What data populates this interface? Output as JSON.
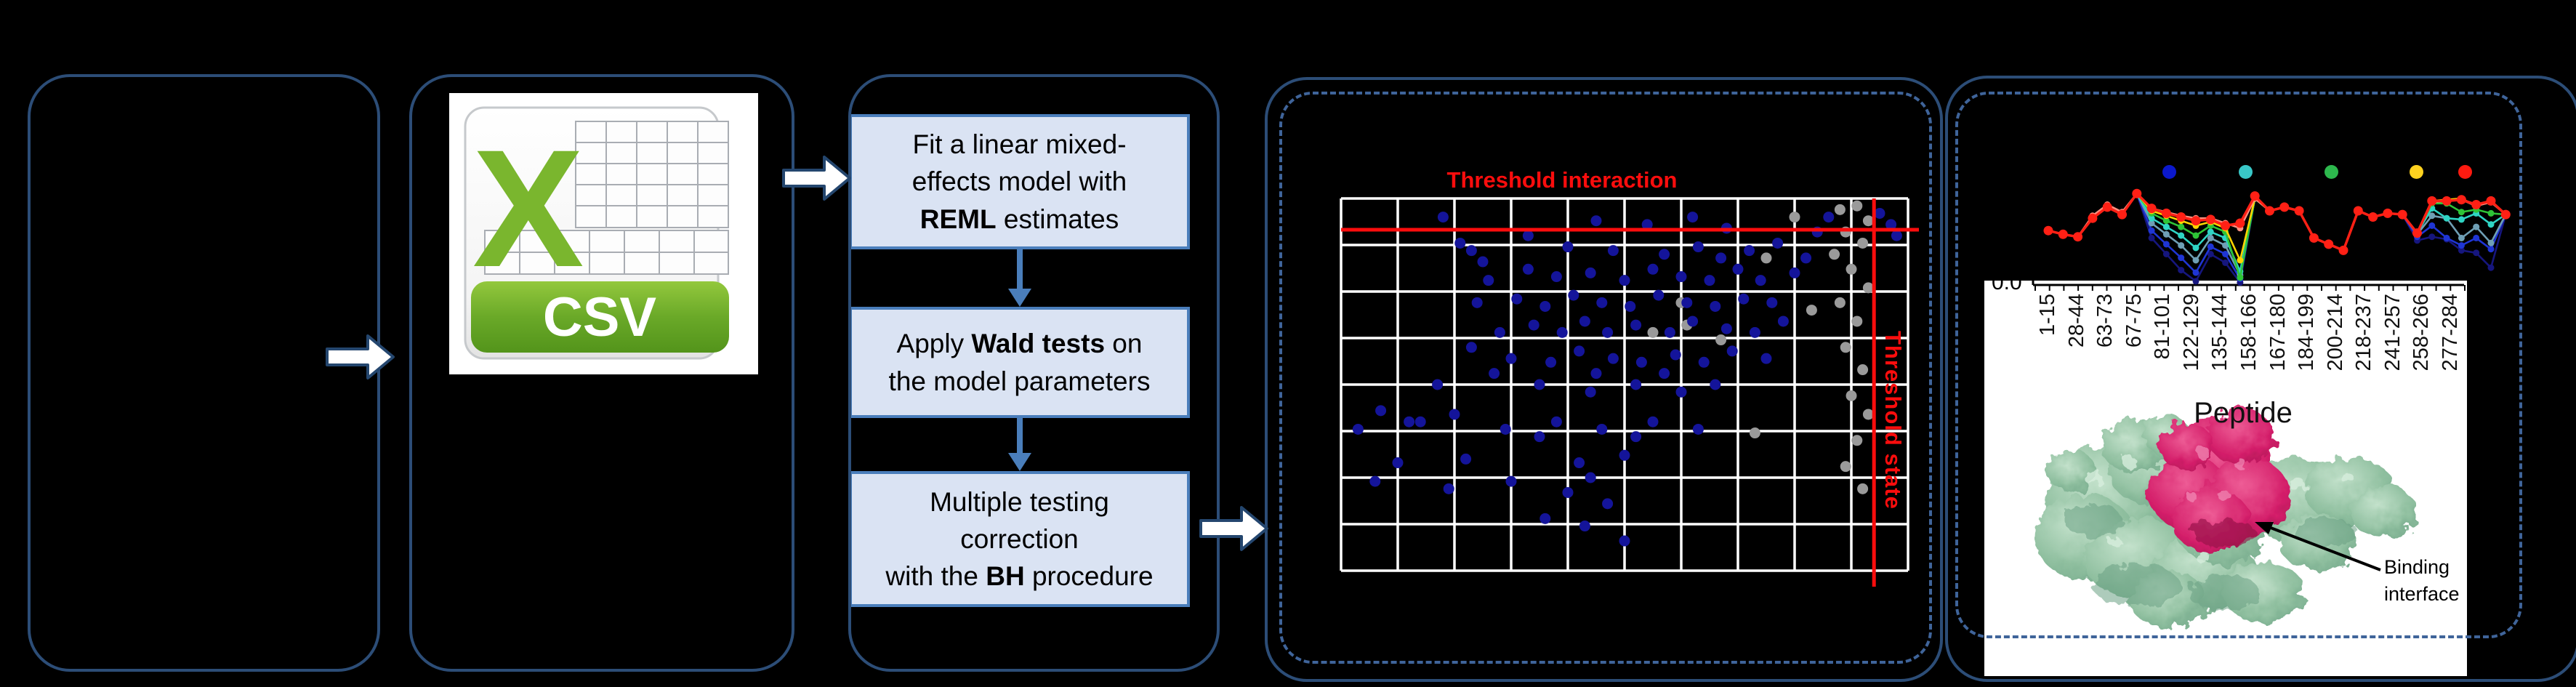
{
  "accent": {
    "panel_border": "#2c4d77",
    "panel_dashed": "#3f649a",
    "box_fill": "#dae3f3",
    "box_border": "#4a7ebb",
    "threshold_red": "#fb0d0d",
    "csv_green": "#7ab62e",
    "protein_green": "#8fbf9f",
    "protein_magenta": "#d41f6a"
  },
  "csv": {
    "letter": "X",
    "label": "CSV"
  },
  "workflow": {
    "steps": [
      {
        "lines": [
          [
            [
              "Fit a linear mixed-",
              false
            ]
          ],
          [
            [
              "effects model with",
              false
            ]
          ],
          [
            [
              "REML",
              true
            ],
            [
              " estimates",
              false
            ]
          ]
        ]
      },
      {
        "lines": [
          [
            [
              "Apply ",
              false
            ],
            [
              "Wald tests",
              true
            ],
            [
              " on",
              false
            ]
          ],
          [
            [
              "the model parameters",
              false
            ]
          ]
        ]
      },
      {
        "lines": [
          [
            [
              "Multiple testing",
              false
            ]
          ],
          [
            [
              "correction",
              false
            ]
          ],
          [
            [
              "with the ",
              false
            ],
            [
              "BH",
              true
            ],
            [
              " procedure",
              false
            ]
          ]
        ]
      }
    ]
  },
  "interaction_map": {
    "title": "Threshold interaction",
    "state_label": "Threshold state"
  },
  "uptake": {
    "y_tick": "0.0",
    "x_title": "Peptide",
    "annotation_lines": [
      "Binding",
      "interface"
    ]
  },
  "chart_data": [
    {
      "type": "scatter",
      "title": "Threshold interaction",
      "xlabel": "",
      "ylabel": "",
      "grid": {
        "cols": 10,
        "rows": 8,
        "line_color": "#ffffff",
        "bg": "#000000"
      },
      "threshold_interaction_y_frac": 0.084,
      "threshold_state_x_frac": 0.94,
      "point_colors": {
        "significant": "#14149a",
        "nonsignificant": "#9a9a9a"
      },
      "blue_points": [
        [
          0.03,
          0.62
        ],
        [
          0.07,
          0.57
        ],
        [
          0.12,
          0.6
        ],
        [
          0.1,
          0.71
        ],
        [
          0.06,
          0.76
        ],
        [
          0.17,
          0.5
        ],
        [
          0.14,
          0.6
        ],
        [
          0.19,
          0.78
        ],
        [
          0.2,
          0.58
        ],
        [
          0.22,
          0.7
        ],
        [
          0.18,
          0.05
        ],
        [
          0.21,
          0.12
        ],
        [
          0.23,
          0.14
        ],
        [
          0.25,
          0.17
        ],
        [
          0.24,
          0.28
        ],
        [
          0.26,
          0.22
        ],
        [
          0.28,
          0.36
        ],
        [
          0.29,
          0.62
        ],
        [
          0.3,
          0.76
        ],
        [
          0.3,
          0.43
        ],
        [
          0.31,
          0.27
        ],
        [
          0.33,
          0.1
        ],
        [
          0.33,
          0.19
        ],
        [
          0.34,
          0.34
        ],
        [
          0.35,
          0.5
        ],
        [
          0.36,
          0.29
        ],
        [
          0.36,
          0.86
        ],
        [
          0.37,
          0.44
        ],
        [
          0.38,
          0.21
        ],
        [
          0.38,
          0.6
        ],
        [
          0.39,
          0.36
        ],
        [
          0.4,
          0.79
        ],
        [
          0.41,
          0.26
        ],
        [
          0.42,
          0.41
        ],
        [
          0.42,
          0.71
        ],
        [
          0.43,
          0.33
        ],
        [
          0.43,
          0.88
        ],
        [
          0.44,
          0.2
        ],
        [
          0.44,
          0.52
        ],
        [
          0.45,
          0.06
        ],
        [
          0.46,
          0.28
        ],
        [
          0.46,
          0.62
        ],
        [
          0.47,
          0.36
        ],
        [
          0.47,
          0.82
        ],
        [
          0.48,
          0.14
        ],
        [
          0.48,
          0.43
        ],
        [
          0.5,
          0.22
        ],
        [
          0.5,
          0.69
        ],
        [
          0.5,
          0.92
        ],
        [
          0.51,
          0.29
        ],
        [
          0.52,
          0.34
        ],
        [
          0.52,
          0.5
        ],
        [
          0.53,
          0.44
        ],
        [
          0.54,
          0.07
        ],
        [
          0.55,
          0.19
        ],
        [
          0.55,
          0.6
        ],
        [
          0.56,
          0.26
        ],
        [
          0.57,
          0.15
        ],
        [
          0.58,
          0.36
        ],
        [
          0.59,
          0.42
        ],
        [
          0.6,
          0.21
        ],
        [
          0.6,
          0.52
        ],
        [
          0.61,
          0.28
        ],
        [
          0.62,
          0.05
        ],
        [
          0.62,
          0.33
        ],
        [
          0.63,
          0.13
        ],
        [
          0.63,
          0.62
        ],
        [
          0.64,
          0.44
        ],
        [
          0.65,
          0.22
        ],
        [
          0.66,
          0.29
        ],
        [
          0.66,
          0.5
        ],
        [
          0.67,
          0.16
        ],
        [
          0.68,
          0.08
        ],
        [
          0.68,
          0.35
        ],
        [
          0.69,
          0.41
        ],
        [
          0.7,
          0.19
        ],
        [
          0.71,
          0.27
        ],
        [
          0.72,
          0.14
        ],
        [
          0.73,
          0.36
        ],
        [
          0.74,
          0.22
        ],
        [
          0.75,
          0.43
        ],
        [
          0.76,
          0.28
        ],
        [
          0.77,
          0.12
        ],
        [
          0.78,
          0.33
        ],
        [
          0.8,
          0.2
        ],
        [
          0.82,
          0.16
        ],
        [
          0.84,
          0.09
        ],
        [
          0.86,
          0.05
        ],
        [
          0.95,
          0.04
        ],
        [
          0.97,
          0.07
        ],
        [
          0.98,
          0.1
        ],
        [
          0.27,
          0.47
        ],
        [
          0.4,
          0.13
        ],
        [
          0.57,
          0.47
        ],
        [
          0.45,
          0.47
        ],
        [
          0.23,
          0.4
        ],
        [
          0.35,
          0.64
        ],
        [
          0.52,
          0.64
        ],
        [
          0.44,
          0.75
        ]
      ],
      "gray_points": [
        [
          0.88,
          0.03
        ],
        [
          0.91,
          0.02
        ],
        [
          0.93,
          0.06
        ],
        [
          0.89,
          0.09
        ],
        [
          0.92,
          0.12
        ],
        [
          0.87,
          0.15
        ],
        [
          0.9,
          0.19
        ],
        [
          0.93,
          0.24
        ],
        [
          0.88,
          0.28
        ],
        [
          0.91,
          0.33
        ],
        [
          0.89,
          0.4
        ],
        [
          0.92,
          0.46
        ],
        [
          0.9,
          0.53
        ],
        [
          0.93,
          0.58
        ],
        [
          0.91,
          0.65
        ],
        [
          0.89,
          0.72
        ],
        [
          0.92,
          0.78
        ],
        [
          0.6,
          0.28
        ],
        [
          0.61,
          0.34
        ],
        [
          0.67,
          0.38
        ],
        [
          0.75,
          0.16
        ],
        [
          0.83,
          0.3
        ],
        [
          0.73,
          0.63
        ],
        [
          0.55,
          0.36
        ],
        [
          0.8,
          0.05
        ]
      ]
    },
    {
      "type": "line",
      "xlabel": "Peptide",
      "y_axis_bottom_tick": "0.0",
      "categories": [
        "1-15",
        "28-44",
        "63-73",
        "67-75",
        "81-101",
        "122-129",
        "135-144",
        "158-166",
        "167-180",
        "184-199",
        "200-214",
        "218-237",
        "241-257",
        "258-266",
        "277-284"
      ],
      "legend_colors": [
        "#0b18cc",
        "#39c8c8",
        "#2db84d",
        "#ffd21f",
        "#ff1a10"
      ],
      "series": [
        {
          "name": "navy",
          "color": "#16167e",
          "values": [
            0.44,
            0.41,
            0.39,
            0.54,
            0.63,
            0.57,
            0.74,
            0.38,
            0.25,
            0.12,
            0.03,
            0.25,
            0.18,
            0.02,
            0.7,
            0.6,
            0.63,
            0.6,
            0.38,
            0.33,
            0.28,
            0.6,
            0.55,
            0.58,
            0.57,
            0.36,
            0.39,
            0.37,
            0.28,
            0.26,
            0.14,
            0.57
          ]
        },
        {
          "name": "blue",
          "color": "#1f35d4",
          "values": [
            0.44,
            0.41,
            0.39,
            0.54,
            0.63,
            0.57,
            0.74,
            0.44,
            0.33,
            0.22,
            0.1,
            0.31,
            0.25,
            0.05,
            0.7,
            0.6,
            0.63,
            0.6,
            0.38,
            0.33,
            0.28,
            0.6,
            0.55,
            0.58,
            0.57,
            0.39,
            0.48,
            0.38,
            0.32,
            0.38,
            0.29,
            0.57
          ]
        },
        {
          "name": "steel",
          "color": "#6f9fb5",
          "values": [
            0.44,
            0.41,
            0.39,
            0.54,
            0.63,
            0.57,
            0.74,
            0.5,
            0.41,
            0.32,
            0.2,
            0.38,
            0.32,
            0.08,
            0.7,
            0.6,
            0.63,
            0.6,
            0.38,
            0.33,
            0.28,
            0.6,
            0.55,
            0.58,
            0.57,
            0.41,
            0.56,
            0.54,
            0.38,
            0.47,
            0.34,
            0.57
          ]
        },
        {
          "name": "cyan",
          "color": "#2fd4c4",
          "values": [
            0.44,
            0.41,
            0.39,
            0.54,
            0.63,
            0.57,
            0.74,
            0.54,
            0.47,
            0.4,
            0.3,
            0.43,
            0.38,
            0.11,
            0.7,
            0.6,
            0.63,
            0.6,
            0.38,
            0.33,
            0.28,
            0.6,
            0.55,
            0.58,
            0.57,
            0.42,
            0.62,
            0.54,
            0.53,
            0.58,
            0.49,
            0.57
          ]
        },
        {
          "name": "green",
          "color": "#2ec437",
          "values": [
            0.44,
            0.41,
            0.39,
            0.54,
            0.63,
            0.57,
            0.74,
            0.58,
            0.52,
            0.47,
            0.4,
            0.48,
            0.43,
            0.06,
            0.7,
            0.6,
            0.63,
            0.6,
            0.38,
            0.33,
            0.28,
            0.6,
            0.55,
            0.58,
            0.57,
            0.42,
            0.66,
            0.66,
            0.59,
            0.61,
            0.58,
            0.57
          ]
        },
        {
          "name": "yellow",
          "color": "#ffd400",
          "values": [
            0.44,
            0.41,
            0.39,
            0.54,
            0.63,
            0.57,
            0.74,
            0.6,
            0.56,
            0.52,
            0.48,
            0.51,
            0.46,
            0.2,
            0.7,
            0.6,
            0.63,
            0.6,
            0.38,
            0.33,
            0.28,
            0.6,
            0.55,
            0.58,
            0.57,
            0.42,
            0.68,
            0.69,
            0.7,
            0.64,
            0.68,
            0.57
          ]
        },
        {
          "name": "salmon",
          "color": "#ff9080",
          "values": [
            0.44,
            0.41,
            0.39,
            0.56,
            0.65,
            0.59,
            0.74,
            0.62,
            0.59,
            0.56,
            0.54,
            0.54,
            0.5,
            0.46,
            0.7,
            0.6,
            0.63,
            0.6,
            0.38,
            0.33,
            0.28,
            0.6,
            0.55,
            0.58,
            0.57,
            0.42,
            0.67,
            0.68,
            0.69,
            0.64,
            0.67,
            0.57
          ]
        },
        {
          "name": "red",
          "color": "#ff2015",
          "values": [
            0.44,
            0.41,
            0.39,
            0.54,
            0.63,
            0.57,
            0.74,
            0.62,
            0.58,
            0.55,
            0.52,
            0.53,
            0.48,
            0.5,
            0.72,
            0.6,
            0.63,
            0.6,
            0.38,
            0.33,
            0.28,
            0.6,
            0.55,
            0.58,
            0.57,
            0.42,
            0.68,
            0.68,
            0.69,
            0.65,
            0.68,
            0.57
          ]
        }
      ]
    }
  ]
}
